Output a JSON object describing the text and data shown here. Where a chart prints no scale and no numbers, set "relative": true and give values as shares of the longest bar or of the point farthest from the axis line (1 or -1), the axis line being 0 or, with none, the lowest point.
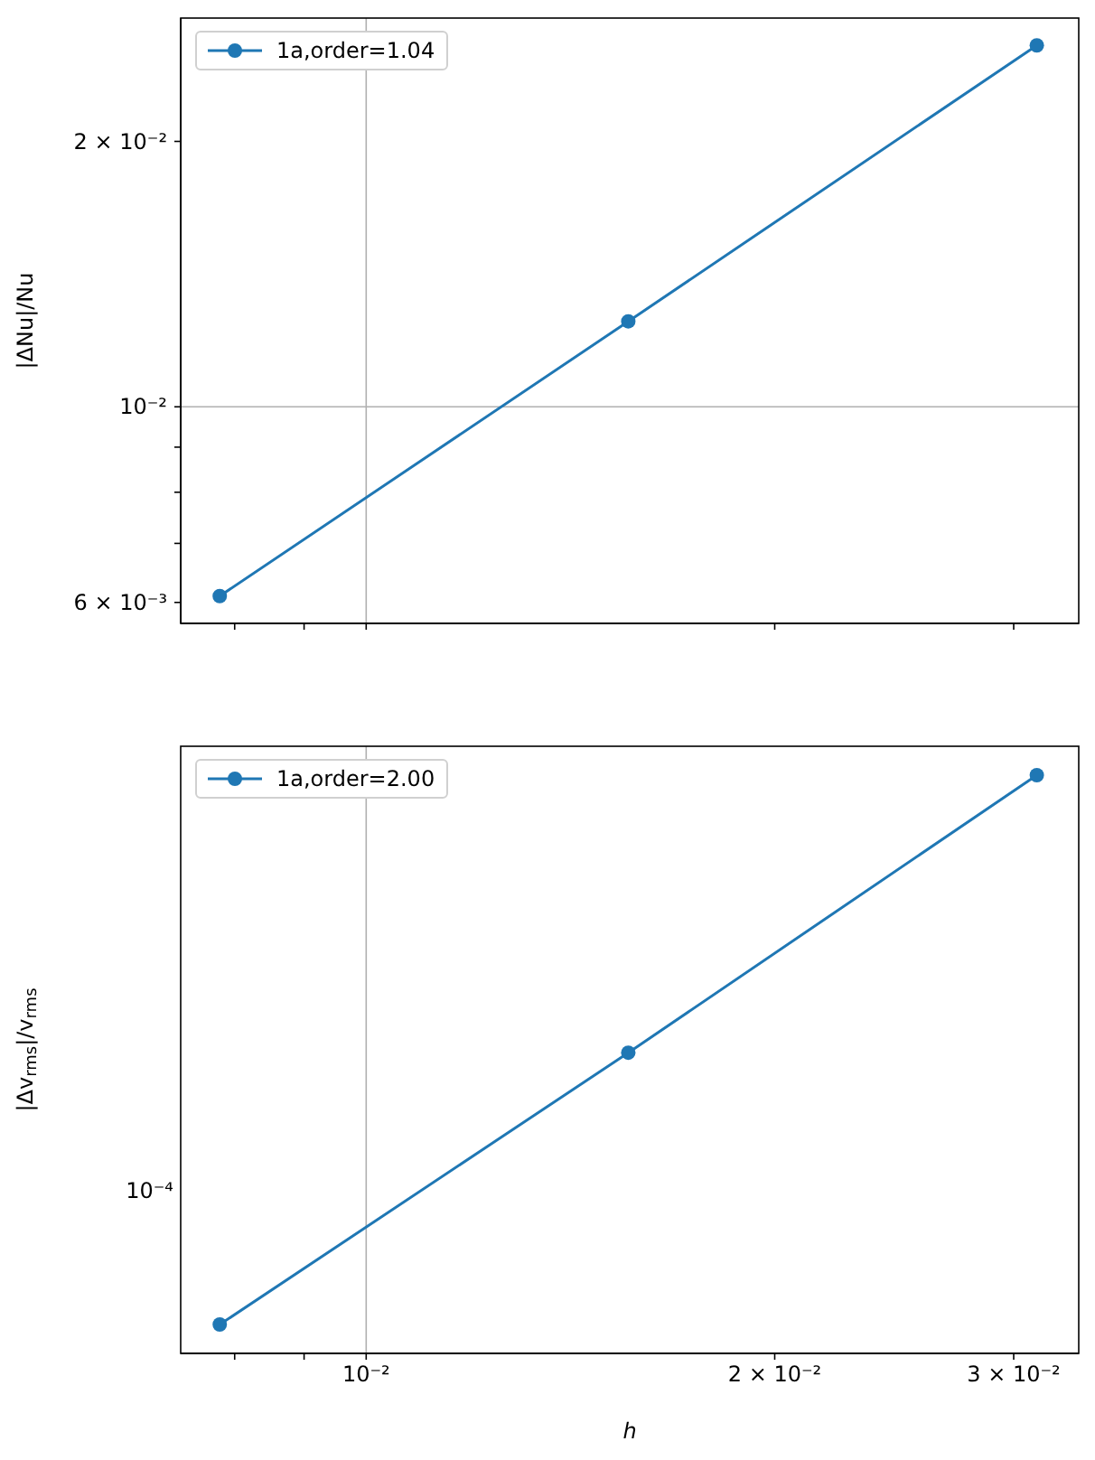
{
  "chart_data": [
    {
      "type": "line",
      "x": [
        0.0078,
        0.0156,
        0.0312
      ],
      "series": [
        {
          "name": "1a,order=1.04",
          "color": "#1f77b4",
          "values": [
            0.0061,
            0.0125,
            0.0257
          ]
        }
      ],
      "ylabel": "|ΔNu|/Nu",
      "log": "xy",
      "xlim": [
        0.0073,
        0.0335
      ],
      "ylim": [
        0.00568,
        0.0276
      ],
      "xticks": [
        {
          "value": 0.008,
          "label": null
        },
        {
          "value": 0.009,
          "label": null
        },
        {
          "value": 0.01,
          "label": null
        },
        {
          "value": 0.02,
          "label": null
        },
        {
          "value": 0.03,
          "label": null
        }
      ],
      "yticks": [
        {
          "value": 0.006,
          "label": "6 × 10⁻³"
        },
        {
          "value": 0.007,
          "label": null
        },
        {
          "value": 0.008,
          "label": null
        },
        {
          "value": 0.009,
          "label": null
        },
        {
          "value": 0.01,
          "label": "10⁻²"
        },
        {
          "value": 0.02,
          "label": "2 × 10⁻²"
        }
      ],
      "tick_labels": "y",
      "grid": true,
      "legend": "top left",
      "marker": "circle",
      "line_style": "solid"
    },
    {
      "type": "line",
      "x": [
        0.0078,
        0.0156,
        0.0312
      ],
      "series": [
        {
          "name": "1a,order=2.00",
          "color": "#1f77b4",
          "values": [
            0.05,
            0.52,
            1
          ]
        }
      ],
      "relative": true,
      "annotations": [
        "10⁻⁴"
      ],
      "xlabel": "h",
      "ylabel": "|Δv$_{rms}$|/v$_{rms}$",
      "log": "x",
      "xlim": [
        0.0073,
        0.0335
      ],
      "xticks": [
        {
          "value": 0.008,
          "label": null
        },
        {
          "value": 0.009,
          "label": null
        },
        {
          "value": 0.01,
          "label": "10⁻²"
        },
        {
          "value": 0.02,
          "label": "2 × 10⁻²"
        },
        {
          "value": 0.03,
          "label": "3 × 10⁻²"
        }
      ],
      "grid": true,
      "legend": "top left",
      "marker": "circle",
      "line_style": "solid"
    }
  ]
}
